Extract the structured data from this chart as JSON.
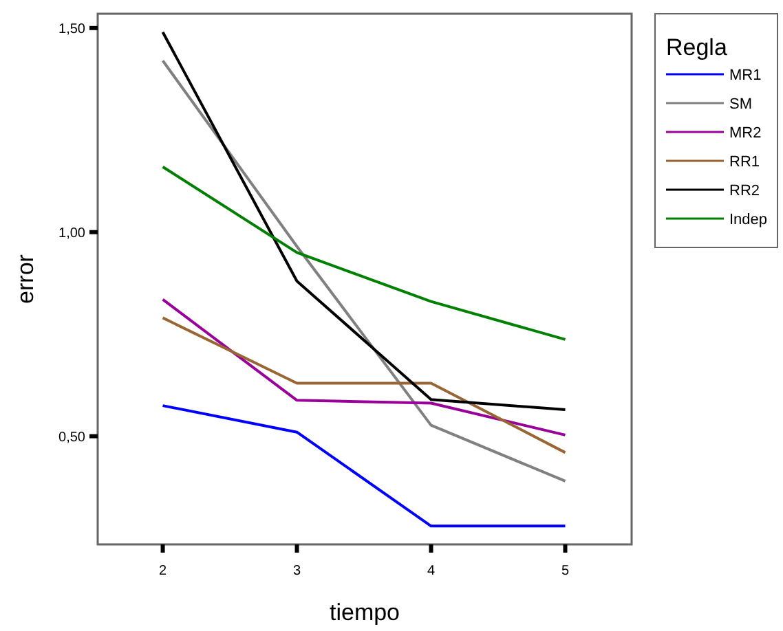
{
  "chart_data": {
    "type": "line",
    "xlabel": "tiempo",
    "ylabel": "error",
    "legend_title": "Regla",
    "x": [
      2,
      3,
      4,
      5
    ],
    "xlim": [
      1.515,
      5.495
    ],
    "xticks": [
      2,
      3,
      4,
      5
    ],
    "ylim": [
      0.235,
      1.535
    ],
    "yticks": [
      {
        "value": 0.5,
        "label": "0,50"
      },
      {
        "value": 1,
        "label": "1,00"
      },
      {
        "value": 1.5,
        "label": "1,50"
      }
    ],
    "grid": false,
    "legend": "right",
    "marker": "none",
    "line_style": "solid",
    "series": [
      {
        "name": "MR1",
        "color": "#0000ff",
        "values": [
          0.575,
          0.51,
          0.28,
          0.28
        ]
      },
      {
        "name": "SM",
        "color": "#808080",
        "values": [
          1.42,
          0.965,
          0.527,
          0.39
        ]
      },
      {
        "name": "MR2",
        "color": "#990099",
        "values": [
          0.835,
          0.588,
          0.581,
          0.503
        ]
      },
      {
        "name": "RR1",
        "color": "#996633",
        "values": [
          0.79,
          0.63,
          0.63,
          0.46
        ]
      },
      {
        "name": "RR2",
        "color": "#000000",
        "values": [
          1.49,
          0.88,
          0.59,
          0.565
        ]
      },
      {
        "name": "Indep",
        "color": "#008000",
        "values": [
          1.16,
          0.95,
          0.83,
          0.737
        ]
      }
    ]
  }
}
